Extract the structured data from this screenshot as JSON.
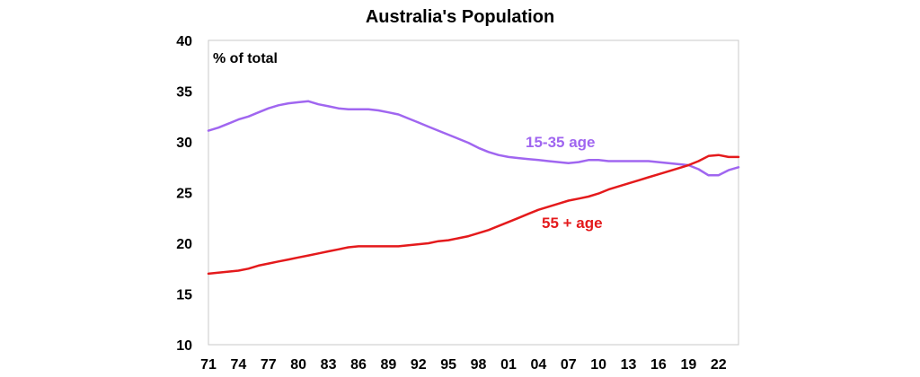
{
  "chart_data": {
    "type": "line",
    "title": "Australia's Population",
    "ylabel": "% of total",
    "xlabel": "",
    "ylim": [
      10,
      40
    ],
    "xlim": [
      1971,
      2024
    ],
    "y_ticks": [
      "10",
      "15",
      "20",
      "25",
      "30",
      "35",
      "40"
    ],
    "x_ticks": [
      {
        "label": "71",
        "year": 1971
      },
      {
        "label": "74",
        "year": 1974
      },
      {
        "label": "77",
        "year": 1977
      },
      {
        "label": "80",
        "year": 1980
      },
      {
        "label": "83",
        "year": 1983
      },
      {
        "label": "86",
        "year": 1986
      },
      {
        "label": "89",
        "year": 1989
      },
      {
        "label": "92",
        "year": 1992
      },
      {
        "label": "95",
        "year": 1995
      },
      {
        "label": "98",
        "year": 1998
      },
      {
        "label": "01",
        "year": 2001
      },
      {
        "label": "04",
        "year": 2004
      },
      {
        "label": "07",
        "year": 2007
      },
      {
        "label": "10",
        "year": 2010
      },
      {
        "label": "13",
        "year": 2013
      },
      {
        "label": "16",
        "year": 2016
      },
      {
        "label": "19",
        "year": 2019
      },
      {
        "label": "22",
        "year": 2022
      }
    ],
    "grid": false,
    "series": [
      {
        "name": "15-35 age",
        "color": "#a066f0",
        "x": [
          1971,
          1972,
          1973,
          1974,
          1975,
          1976,
          1977,
          1978,
          1979,
          1980,
          1981,
          1982,
          1983,
          1984,
          1985,
          1986,
          1987,
          1988,
          1989,
          1990,
          1991,
          1992,
          1993,
          1994,
          1995,
          1996,
          1997,
          1998,
          1999,
          2000,
          2001,
          2002,
          2003,
          2004,
          2005,
          2006,
          2007,
          2008,
          2009,
          2010,
          2011,
          2012,
          2013,
          2014,
          2015,
          2016,
          2017,
          2018,
          2019,
          2020,
          2021,
          2022,
          2023,
          2024
        ],
        "values": [
          31.1,
          31.4,
          31.8,
          32.2,
          32.5,
          32.9,
          33.3,
          33.6,
          33.8,
          33.9,
          34.0,
          33.7,
          33.5,
          33.3,
          33.2,
          33.2,
          33.2,
          33.1,
          32.9,
          32.7,
          32.3,
          31.9,
          31.5,
          31.1,
          30.7,
          30.3,
          29.9,
          29.4,
          29.0,
          28.7,
          28.5,
          28.4,
          28.3,
          28.2,
          28.1,
          28.0,
          27.9,
          28.0,
          28.2,
          28.2,
          28.1,
          28.1,
          28.1,
          28.1,
          28.1,
          28.0,
          27.9,
          27.8,
          27.7,
          27.3,
          26.7,
          26.7,
          27.2,
          27.5
        ]
      },
      {
        "name": "55 + age",
        "color": "#e41a1c",
        "x": [
          1971,
          1972,
          1973,
          1974,
          1975,
          1976,
          1977,
          1978,
          1979,
          1980,
          1981,
          1982,
          1983,
          1984,
          1985,
          1986,
          1987,
          1988,
          1989,
          1990,
          1991,
          1992,
          1993,
          1994,
          1995,
          1996,
          1997,
          1998,
          1999,
          2000,
          2001,
          2002,
          2003,
          2004,
          2005,
          2006,
          2007,
          2008,
          2009,
          2010,
          2011,
          2012,
          2013,
          2014,
          2015,
          2016,
          2017,
          2018,
          2019,
          2020,
          2021,
          2022,
          2023,
          2024
        ],
        "values": [
          17.0,
          17.1,
          17.2,
          17.3,
          17.5,
          17.8,
          18.0,
          18.2,
          18.4,
          18.6,
          18.8,
          19.0,
          19.2,
          19.4,
          19.6,
          19.7,
          19.7,
          19.7,
          19.7,
          19.7,
          19.8,
          19.9,
          20.0,
          20.2,
          20.3,
          20.5,
          20.7,
          21.0,
          21.3,
          21.7,
          22.1,
          22.5,
          22.9,
          23.3,
          23.6,
          23.9,
          24.2,
          24.4,
          24.6,
          24.9,
          25.3,
          25.6,
          25.9,
          26.2,
          26.5,
          26.8,
          27.1,
          27.4,
          27.7,
          28.1,
          28.6,
          28.7,
          28.5,
          28.5
        ]
      }
    ],
    "annotations": [
      {
        "text": "15-35 age",
        "series": 0
      },
      {
        "text": "55 + age",
        "series": 1
      }
    ]
  }
}
